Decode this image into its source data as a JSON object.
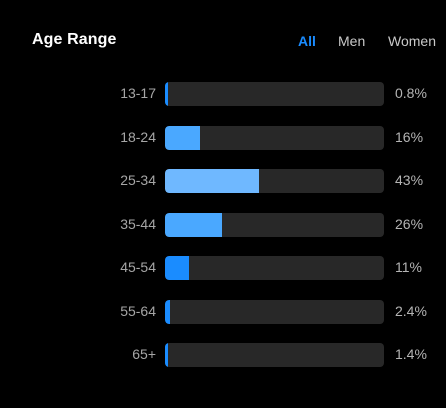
{
  "header": {
    "title": "Age Range",
    "tabs": [
      {
        "label": "All",
        "active": true
      },
      {
        "label": "Men",
        "active": false
      },
      {
        "label": "Women",
        "active": false
      }
    ]
  },
  "colors": {
    "accent": "#1a8cff",
    "track": "#282828"
  },
  "chart_data": {
    "type": "bar",
    "title": "",
    "xlabel": "",
    "ylabel": "",
    "categories": [
      "13-17",
      "18-24",
      "25-34",
      "35-44",
      "45-54",
      "55-64",
      "65+"
    ],
    "values": [
      0.8,
      16,
      43,
      26,
      11,
      2.4,
      1.4
    ],
    "value_labels": [
      "0.8%",
      "16%",
      "43%",
      "26%",
      "11%",
      "2.4%",
      "1.4%"
    ],
    "bar_colors": [
      "#1a8cff",
      "#4aa8ff",
      "#6fb8ff",
      "#4aa8ff",
      "#1a8cff",
      "#1a8cff",
      "#1a8cff"
    ],
    "xlim": [
      0,
      100
    ],
    "grid": false,
    "legend": "none"
  }
}
